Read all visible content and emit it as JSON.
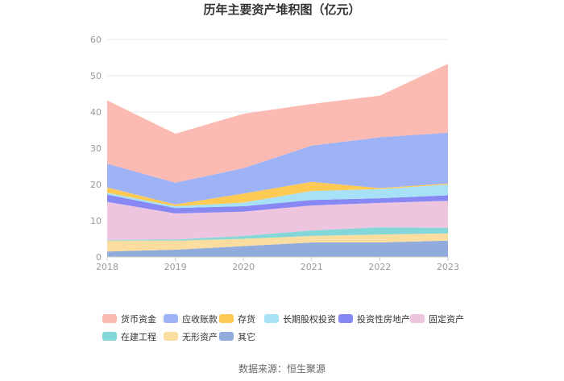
{
  "chart_data": {
    "type": "area",
    "stacked": true,
    "title": "历年主要资产堆积图（亿元）",
    "x": [
      "2018",
      "2019",
      "2020",
      "2021",
      "2022",
      "2023"
    ],
    "ylim": [
      0,
      60
    ],
    "yticks": [
      0,
      10,
      20,
      30,
      40,
      50,
      60
    ],
    "grid": true,
    "legend_position": "bottom",
    "series": [
      {
        "name": "其它",
        "color": "#91ACDC",
        "values": [
          1.5,
          2.0,
          3.0,
          4.0,
          4.0,
          4.5
        ]
      },
      {
        "name": "无形资产",
        "color": "#FCDDA0",
        "values": [
          3.0,
          2.5,
          2.0,
          1.8,
          2.2,
          2.0
        ]
      },
      {
        "name": "在建工程",
        "color": "#84D7D8",
        "values": [
          0.2,
          0.3,
          0.8,
          1.5,
          2.0,
          1.5
        ]
      },
      {
        "name": "固定资产",
        "color": "#EDC5DF",
        "values": [
          10.5,
          7.2,
          6.7,
          6.9,
          6.7,
          7.5
        ]
      },
      {
        "name": "投资性房地产",
        "color": "#8788F4",
        "values": [
          2.0,
          1.5,
          1.5,
          1.5,
          1.3,
          1.5
        ]
      },
      {
        "name": "长期股权投资",
        "color": "#A6E1F7",
        "values": [
          0.5,
          0.5,
          1.0,
          2.5,
          2.5,
          3.0
        ]
      },
      {
        "name": "存货",
        "color": "#FFCA54",
        "values": [
          1.5,
          0.5,
          2.5,
          2.5,
          0.3,
          0.3
        ]
      },
      {
        "name": "应收账款",
        "color": "#9DB3F6",
        "values": [
          6.5,
          6.0,
          7.0,
          10.0,
          14.0,
          14.0
        ]
      },
      {
        "name": "货币资金",
        "color": "#FBBAB2",
        "values": [
          17.5,
          13.5,
          15.0,
          11.5,
          11.5,
          19.0
        ]
      }
    ],
    "legend_order": [
      "货币资金",
      "应收账款",
      "存货",
      "长期股权投资",
      "投资性房地产",
      "固定资产",
      "在建工程",
      "无形资产",
      "其它"
    ],
    "source": "数据来源：恒生聚源"
  }
}
